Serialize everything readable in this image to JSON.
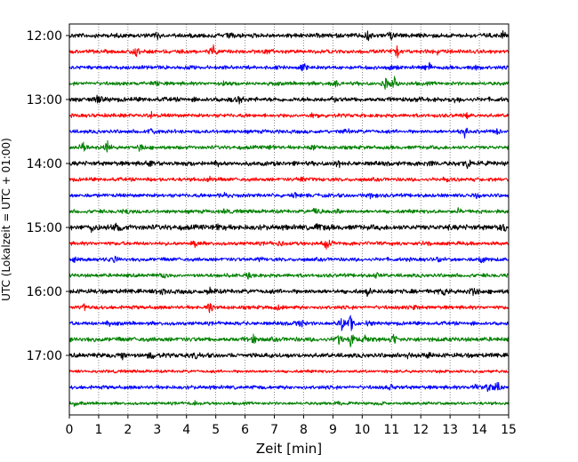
{
  "chart_data": {
    "type": "line",
    "title": "",
    "xlabel": "Zeit  [min]",
    "ylabel": "UTC (Lokalzeit = UTC + 01:00)",
    "xlim": [
      0,
      15
    ],
    "x_ticks": [
      "0",
      "1",
      "2",
      "3",
      "4",
      "5",
      "6",
      "7",
      "8",
      "9",
      "10",
      "11",
      "12",
      "13",
      "14",
      "15"
    ],
    "y_ticks": [
      "12:00",
      "13:00",
      "14:00",
      "15:00",
      "16:00",
      "17:00"
    ],
    "grid": "vertical-dotted",
    "colors": [
      "#000000",
      "#ff0000",
      "#0000ff",
      "#008000"
    ],
    "traces": [
      {
        "start": "12:00",
        "color": "#000000",
        "amp": 3,
        "events": [
          [
            3.0,
            5
          ],
          [
            5.5,
            4
          ],
          [
            10.2,
            7
          ],
          [
            11.0,
            5
          ],
          [
            14.8,
            4
          ]
        ]
      },
      {
        "start": "12:15",
        "color": "#ff0000",
        "amp": 2.5,
        "events": [
          [
            2.3,
            8
          ],
          [
            4.9,
            9
          ],
          [
            6.8,
            3
          ],
          [
            11.2,
            12
          ],
          [
            12.6,
            4
          ]
        ]
      },
      {
        "start": "12:30",
        "color": "#0000ff",
        "amp": 2.5,
        "events": [
          [
            8.0,
            6
          ],
          [
            11.0,
            4
          ],
          [
            12.3,
            5
          ],
          [
            13.9,
            3
          ]
        ]
      },
      {
        "start": "12:45",
        "color": "#008000",
        "amp": 2.5,
        "events": [
          [
            3.0,
            4
          ],
          [
            5.3,
            3
          ],
          [
            9.1,
            5
          ],
          [
            10.8,
            8
          ],
          [
            11.1,
            9
          ]
        ]
      },
      {
        "start": "13:00",
        "color": "#000000",
        "amp": 3,
        "events": [
          [
            1.0,
            5
          ],
          [
            5.8,
            5
          ],
          [
            9.0,
            5
          ],
          [
            13.2,
            4
          ]
        ]
      },
      {
        "start": "13:15",
        "color": "#ff0000",
        "amp": 2.5,
        "events": [
          [
            2.8,
            4
          ],
          [
            8.3,
            3
          ],
          [
            13.6,
            4
          ]
        ]
      },
      {
        "start": "13:30",
        "color": "#0000ff",
        "amp": 2.5,
        "events": [
          [
            2.8,
            6
          ],
          [
            9.5,
            4
          ],
          [
            13.5,
            8
          ],
          [
            14.6,
            3
          ]
        ]
      },
      {
        "start": "13:45",
        "color": "#008000",
        "amp": 2.5,
        "events": [
          [
            0.5,
            8
          ],
          [
            1.3,
            9
          ],
          [
            2.4,
            5
          ],
          [
            6.9,
            3
          ],
          [
            8.3,
            4
          ]
        ]
      },
      {
        "start": "14:00",
        "color": "#000000",
        "amp": 3,
        "events": [
          [
            2.8,
            5
          ],
          [
            5.0,
            4
          ],
          [
            9.2,
            4
          ],
          [
            12.4,
            4
          ],
          [
            13.6,
            6
          ]
        ]
      },
      {
        "start": "14:15",
        "color": "#ff0000",
        "amp": 2.5,
        "events": [
          [
            2.8,
            3
          ],
          [
            4.8,
            3
          ],
          [
            7.9,
            3
          ],
          [
            12.9,
            3
          ]
        ]
      },
      {
        "start": "14:30",
        "color": "#0000ff",
        "amp": 2.5,
        "events": [
          [
            5.3,
            4
          ],
          [
            7.7,
            3
          ],
          [
            10.3,
            4
          ],
          [
            13.9,
            3
          ]
        ]
      },
      {
        "start": "14:45",
        "color": "#008000",
        "amp": 2.5,
        "events": [
          [
            2.0,
            3
          ],
          [
            5.3,
            3
          ],
          [
            8.4,
            4
          ],
          [
            9.2,
            3
          ],
          [
            13.3,
            3
          ]
        ]
      },
      {
        "start": "15:00",
        "color": "#000000",
        "amp": 3.5,
        "events": [
          [
            0.8,
            5
          ],
          [
            1.6,
            7
          ],
          [
            5.1,
            4
          ],
          [
            8.5,
            4
          ],
          [
            14.9,
            5
          ]
        ]
      },
      {
        "start": "15:15",
        "color": "#ff0000",
        "amp": 2.5,
        "events": [
          [
            4.3,
            3
          ],
          [
            7.2,
            3
          ],
          [
            8.8,
            7
          ],
          [
            12.0,
            3
          ]
        ]
      },
      {
        "start": "15:30",
        "color": "#0000ff",
        "amp": 2.5,
        "events": [
          [
            0.2,
            4
          ],
          [
            1.5,
            5
          ],
          [
            6.5,
            3
          ],
          [
            12.6,
            3
          ],
          [
            14.1,
            9
          ]
        ]
      },
      {
        "start": "15:45",
        "color": "#008000",
        "amp": 2.5,
        "events": [
          [
            3.2,
            3
          ],
          [
            6.1,
            3
          ],
          [
            10.5,
            3
          ]
        ]
      },
      {
        "start": "16:00",
        "color": "#000000",
        "amp": 3,
        "events": [
          [
            3.2,
            5
          ],
          [
            4.8,
            4
          ],
          [
            10.2,
            5
          ],
          [
            12.8,
            5
          ],
          [
            13.8,
            6
          ]
        ]
      },
      {
        "start": "16:15",
        "color": "#ff0000",
        "amp": 2.5,
        "events": [
          [
            0.5,
            4
          ],
          [
            4.8,
            9
          ],
          [
            7.1,
            3
          ],
          [
            11.8,
            3
          ]
        ]
      },
      {
        "start": "16:30",
        "color": "#0000ff",
        "amp": 2.5,
        "events": [
          [
            1.3,
            4
          ],
          [
            7.9,
            8
          ],
          [
            9.3,
            9
          ],
          [
            9.6,
            15
          ],
          [
            10.2,
            4
          ]
        ]
      },
      {
        "start": "16:45",
        "color": "#008000",
        "amp": 3,
        "events": [
          [
            6.3,
            6
          ],
          [
            9.2,
            7
          ],
          [
            9.6,
            8
          ],
          [
            10.1,
            4
          ],
          [
            11.1,
            7
          ]
        ]
      },
      {
        "start": "17:00",
        "color": "#000000",
        "amp": 3,
        "events": [
          [
            1.8,
            6
          ],
          [
            2.8,
            4
          ],
          [
            4.3,
            3
          ],
          [
            11.6,
            3
          ],
          [
            12.3,
            3
          ]
        ]
      },
      {
        "start": "17:15",
        "color": "#ff0000",
        "amp": 2,
        "events": []
      },
      {
        "start": "17:30",
        "color": "#0000ff",
        "amp": 2.5,
        "events": [
          [
            11.0,
            3
          ],
          [
            13.9,
            5
          ],
          [
            14.3,
            6
          ],
          [
            14.6,
            9
          ]
        ]
      },
      {
        "start": "17:45",
        "color": "#008000",
        "amp": 2,
        "events": [
          [
            0.2,
            3
          ],
          [
            4.3,
            3
          ],
          [
            9.2,
            3
          ],
          [
            10.6,
            3
          ]
        ]
      }
    ]
  }
}
